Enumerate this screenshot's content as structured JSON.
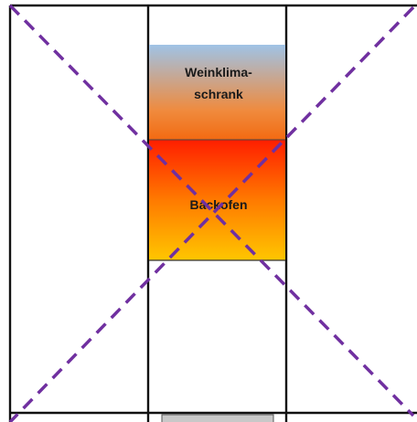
{
  "cabinet": {
    "compartments": [
      {
        "name": "wine-cooler",
        "label_lines": [
          "Weinklima-",
          "schrank"
        ],
        "gradient": [
          "#9fc3e6",
          "#f08a3c",
          "#f26a12"
        ]
      },
      {
        "name": "oven",
        "label_lines": [
          "Backofen"
        ],
        "gradient": [
          "#ff1e00",
          "#ff7a00",
          "#ffc600"
        ]
      }
    ]
  },
  "overlay": {
    "cross_color": "#7030a0",
    "style": "dashed"
  },
  "colors": {
    "frame": "#111111",
    "drawer_handle": "#c8c8c8"
  }
}
